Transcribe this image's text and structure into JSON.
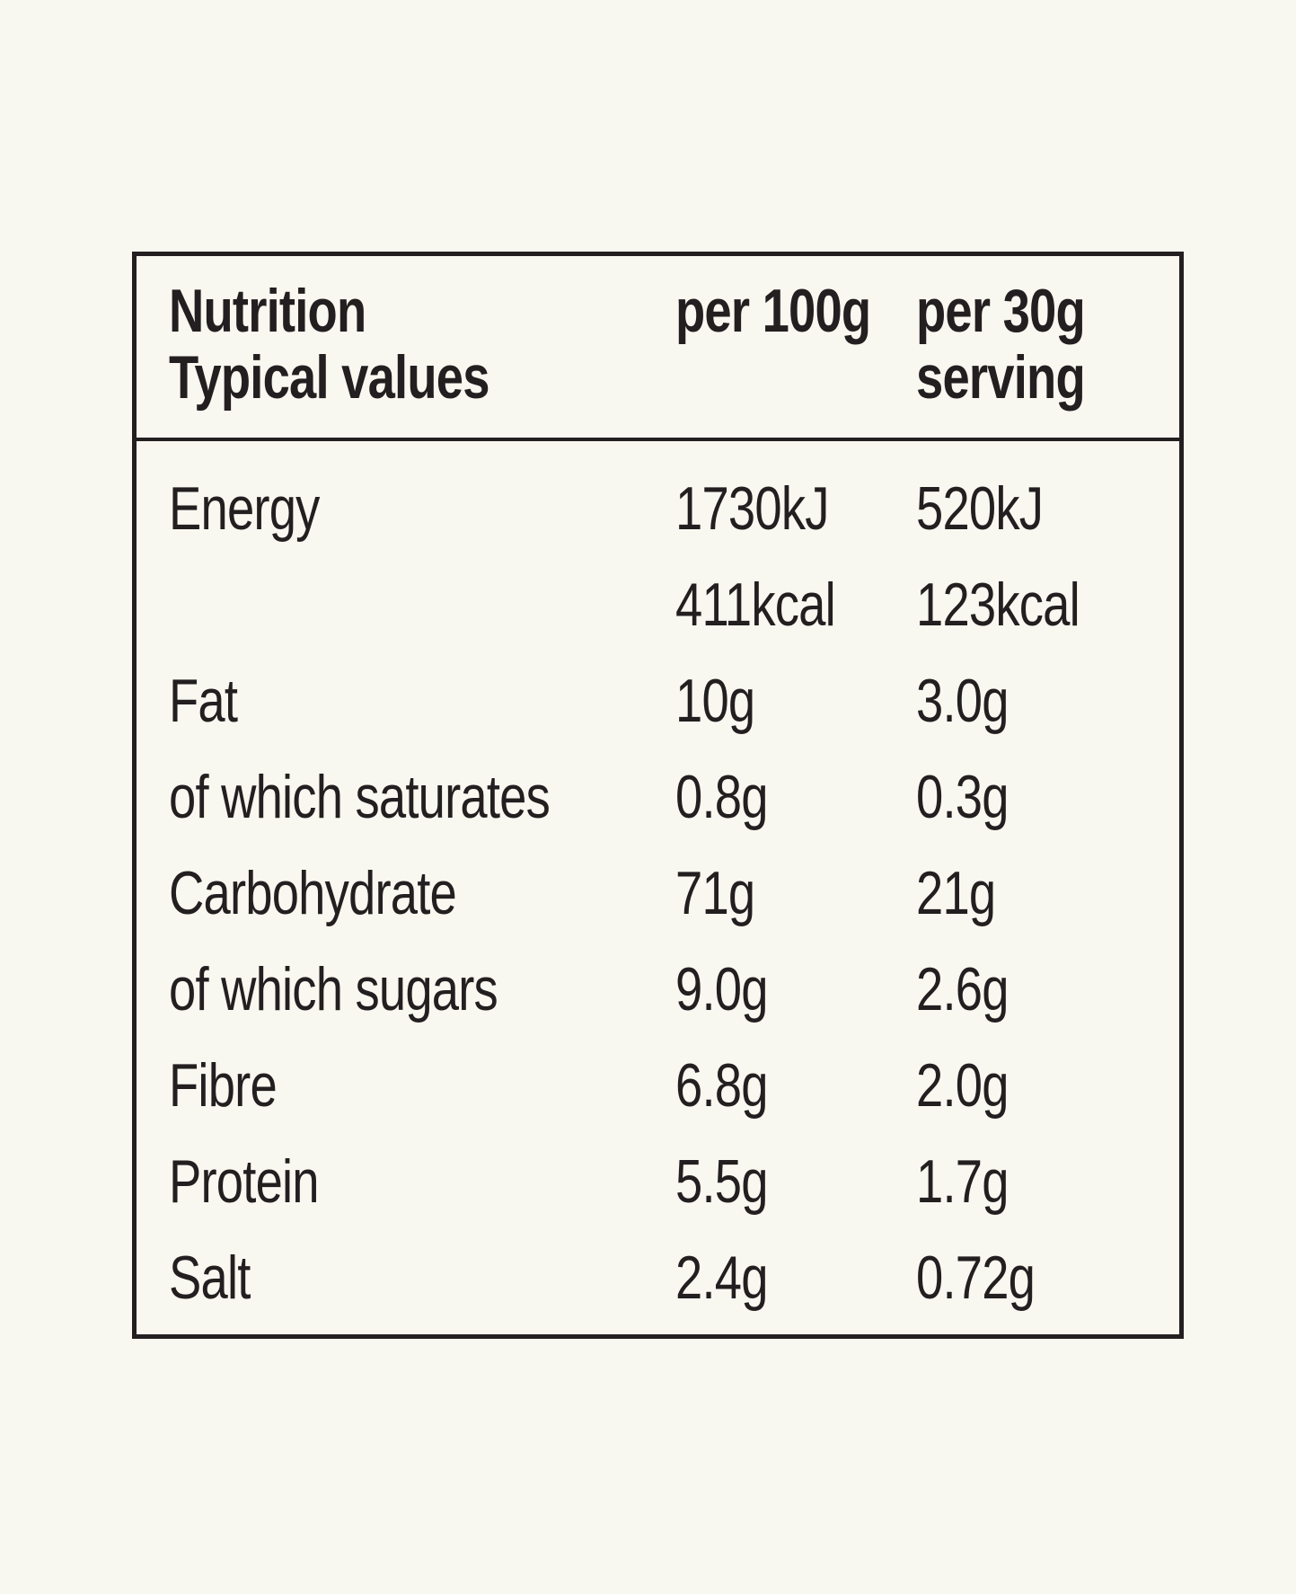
{
  "theme": {
    "background_color": "#f8f7f0",
    "text_color": "#231f20",
    "border_color": "#231f20"
  },
  "table": {
    "header": {
      "col1_line1": "Nutrition",
      "col1_line2": "Typical values",
      "col2_line1": "per 100g",
      "col2_line2": "",
      "col3_line1": "per 30g",
      "col3_line2": "serving"
    },
    "rows": [
      {
        "label": "Energy",
        "per100": "1730kJ",
        "per30": "520kJ"
      },
      {
        "label": "",
        "per100": "411kcal",
        "per30": "123kcal"
      },
      {
        "label": "Fat",
        "per100": "10g",
        "per30": "3.0g"
      },
      {
        "label": "of which saturates",
        "per100": "0.8g",
        "per30": "0.3g"
      },
      {
        "label": "Carbohydrate",
        "per100": "71g",
        "per30": "21g"
      },
      {
        "label": "of which sugars",
        "per100": "9.0g",
        "per30": "2.6g"
      },
      {
        "label": "Fibre",
        "per100": "6.8g",
        "per30": "2.0g"
      },
      {
        "label": "Protein",
        "per100": "5.5g",
        "per30": "1.7g"
      },
      {
        "label": "Salt",
        "per100": "2.4g",
        "per30": "0.72g"
      }
    ]
  }
}
